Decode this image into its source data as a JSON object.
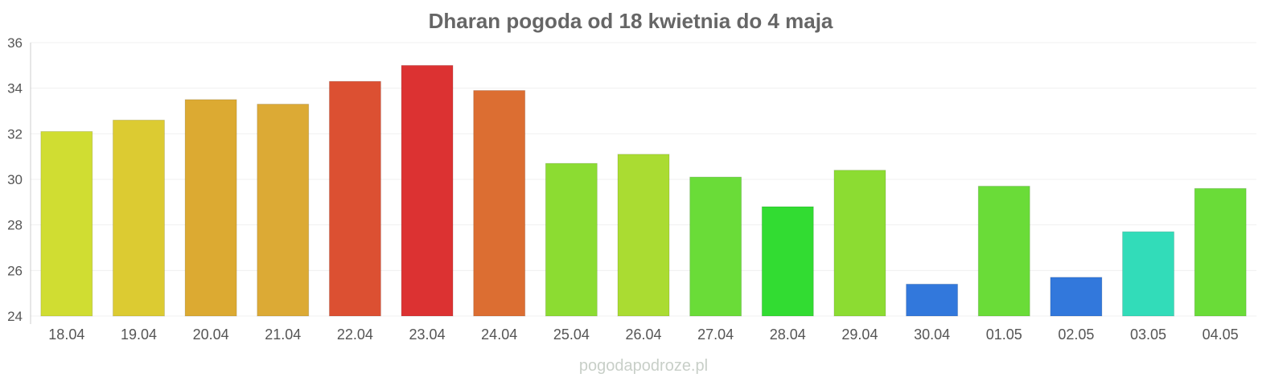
{
  "chart_data": {
    "type": "bar",
    "title": "Dharan pogoda od 18 kwietnia do 4 maja",
    "xlabel": "",
    "ylabel": "",
    "ylim": [
      24,
      36
    ],
    "yticks": [
      24,
      26,
      28,
      30,
      32,
      34,
      36
    ],
    "grid": true,
    "categories": [
      "18.04",
      "19.04",
      "20.04",
      "21.04",
      "22.04",
      "23.04",
      "24.04",
      "25.04",
      "26.04",
      "27.04",
      "28.04",
      "29.04",
      "30.04",
      "01.05",
      "02.05",
      "03.05",
      "04.05"
    ],
    "values": [
      32.1,
      32.6,
      33.5,
      33.3,
      34.3,
      35.0,
      33.9,
      30.7,
      31.1,
      30.1,
      28.8,
      30.4,
      25.4,
      29.7,
      25.7,
      27.7,
      29.6
    ],
    "colors": [
      "#d0dd32",
      "#dccb32",
      "#dcaa32",
      "#dcaa35",
      "#dc5032",
      "#dc3232",
      "#dc6e32",
      "#8cdc32",
      "#aadc32",
      "#6adc38",
      "#32dc32",
      "#8cdc32",
      "#3278dc",
      "#6adc38",
      "#3278dc",
      "#32dcb9",
      "#6adc38"
    ]
  },
  "watermark": "pogodapodroze.pl"
}
